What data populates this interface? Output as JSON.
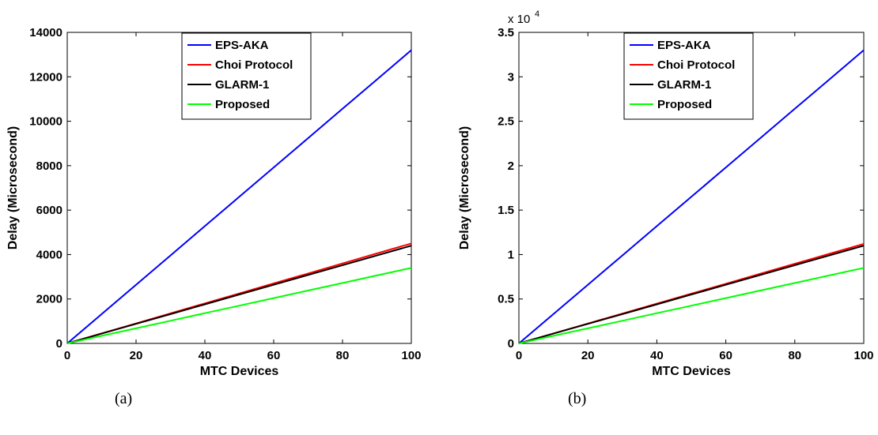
{
  "chart_data": [
    {
      "type": "line",
      "caption": "(a)",
      "xlabel": "MTC Devices",
      "ylabel": "Delay (Microsecond)",
      "xlim": [
        0,
        100
      ],
      "ylim": [
        0,
        14000
      ],
      "xticks": [
        0,
        20,
        40,
        60,
        80,
        100
      ],
      "yticks": [
        0,
        2000,
        4000,
        6000,
        8000,
        10000,
        12000,
        14000
      ],
      "ytick_labels": [
        "0",
        "2000",
        "4000",
        "6000",
        "8000",
        "10000",
        "12000",
        "14000"
      ],
      "exponent_label": "",
      "grid": false,
      "legend_position": "top",
      "x": [
        0,
        10,
        20,
        30,
        40,
        50,
        60,
        70,
        80,
        90,
        100
      ],
      "series": [
        {
          "name": "EPS-AKA",
          "color": "#0000ff",
          "values": [
            0,
            1320,
            2640,
            3960,
            5280,
            6600,
            7920,
            9240,
            10560,
            11880,
            13200
          ]
        },
        {
          "name": "Choi Protocol",
          "color": "#ff0000",
          "values": [
            0,
            450,
            900,
            1350,
            1800,
            2250,
            2700,
            3150,
            3600,
            4050,
            4500
          ]
        },
        {
          "name": "GLARM-1",
          "color": "#000000",
          "values": [
            0,
            440,
            880,
            1320,
            1760,
            2200,
            2640,
            3080,
            3520,
            3960,
            4400
          ]
        },
        {
          "name": "Proposed",
          "color": "#00ff00",
          "values": [
            0,
            340,
            680,
            1020,
            1360,
            1700,
            2040,
            2380,
            2720,
            3060,
            3400
          ]
        }
      ]
    },
    {
      "type": "line",
      "caption": "(b)",
      "xlabel": "MTC Devices",
      "ylabel": "Delay (Microsecond)",
      "xlim": [
        0,
        100
      ],
      "ylim": [
        0,
        35000
      ],
      "xticks": [
        0,
        20,
        40,
        60,
        80,
        100
      ],
      "yticks": [
        0,
        5000,
        10000,
        15000,
        20000,
        25000,
        30000,
        35000
      ],
      "ytick_labels": [
        "0",
        "0.5",
        "1",
        "1.5",
        "2",
        "2.5",
        "3",
        "3.5"
      ],
      "exponent_label": "x 10",
      "exponent_power": "4",
      "grid": false,
      "legend_position": "top",
      "x": [
        0,
        10,
        20,
        30,
        40,
        50,
        60,
        70,
        80,
        90,
        100
      ],
      "series": [
        {
          "name": "EPS-AKA",
          "color": "#0000ff",
          "values": [
            0,
            3300,
            6600,
            9900,
            13200,
            16500,
            19800,
            23100,
            26400,
            29700,
            33000
          ]
        },
        {
          "name": "Choi Protocol",
          "color": "#ff0000",
          "values": [
            0,
            1120,
            2240,
            3360,
            4480,
            5600,
            6720,
            7840,
            8960,
            10080,
            11200
          ]
        },
        {
          "name": "GLARM-1",
          "color": "#000000",
          "values": [
            0,
            1100,
            2200,
            3300,
            4400,
            5500,
            6600,
            7700,
            8800,
            9900,
            11000
          ]
        },
        {
          "name": "Proposed",
          "color": "#00ff00",
          "values": [
            0,
            850,
            1700,
            2550,
            3400,
            4250,
            5100,
            5950,
            6800,
            7650,
            8500
          ]
        }
      ]
    }
  ]
}
